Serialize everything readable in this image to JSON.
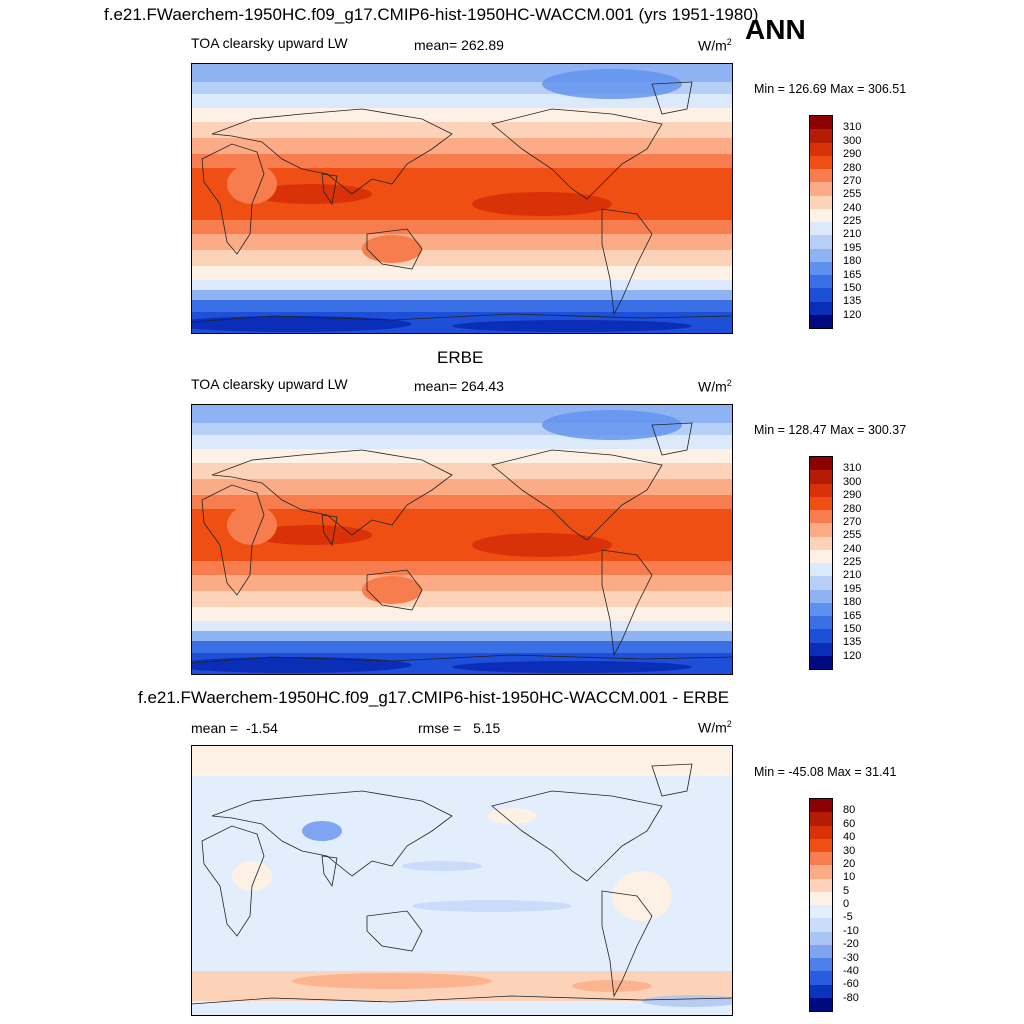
{
  "header": {
    "case_title": "f.e21.FWaerchem-1950HC.f09_g17.CMIP6-hist-1950HC-WACCM.001 (yrs 1951-1980)",
    "season": "ANN"
  },
  "panels": [
    {
      "id": "model",
      "title": "",
      "variable": "TOA clearsky upward LW",
      "stat_label": "mean=",
      "stat_value": "262.89",
      "units": "W/m",
      "units_sup": "2",
      "min_text": "Min = 126.69 Max = 306.51",
      "colorbar_levels": [
        "310",
        "300",
        "290",
        "280",
        "270",
        "255",
        "240",
        "225",
        "210",
        "195",
        "180",
        "165",
        "150",
        "135",
        "120"
      ]
    },
    {
      "id": "obs",
      "title": "ERBE",
      "variable": "TOA clearsky upward LW",
      "stat_label": "mean=",
      "stat_value": "264.43",
      "units": "W/m",
      "units_sup": "2",
      "min_text": "Min = 128.47 Max = 300.37",
      "colorbar_levels": [
        "310",
        "300",
        "290",
        "280",
        "270",
        "255",
        "240",
        "225",
        "210",
        "195",
        "180",
        "165",
        "150",
        "135",
        "120"
      ]
    },
    {
      "id": "diff",
      "title": "f.e21.FWaerchem-1950HC.f09_g17.CMIP6-hist-1950HC-WACCM.001 - ERBE",
      "stat_label": "mean =",
      "stat_value": "-1.54",
      "stat2_label": "rmse =",
      "stat2_value": "5.15",
      "units": "W/m",
      "units_sup": "2",
      "min_text": "Min = -45.08 Max =  31.41",
      "colorbar_levels": [
        "80",
        "60",
        "40",
        "30",
        "20",
        "10",
        "5",
        "0",
        "-5",
        "-10",
        "-20",
        "-30",
        "-40",
        "-60",
        "-80"
      ]
    }
  ],
  "colors": {
    "abs_scale": [
      "#8b0000",
      "#b51c05",
      "#d93208",
      "#f04f14",
      "#f77d4e",
      "#fbab85",
      "#fcd2b8",
      "#fdf0e4",
      "#dce9fa",
      "#b6cff7",
      "#8fb2f2",
      "#6090ee",
      "#3a6fe6",
      "#1e4fd8",
      "#0a2eb8",
      "#000a80"
    ],
    "diff_scale": [
      "#8b0000",
      "#b51c05",
      "#d93208",
      "#f04f14",
      "#f77d4e",
      "#fbab85",
      "#fcd2b8",
      "#fdf0e4",
      "#e3eefc",
      "#cadcf9",
      "#aac5f5",
      "#7fa4f0",
      "#4f80ea",
      "#2a5cdf",
      "#0a33be",
      "#000a80"
    ]
  }
}
